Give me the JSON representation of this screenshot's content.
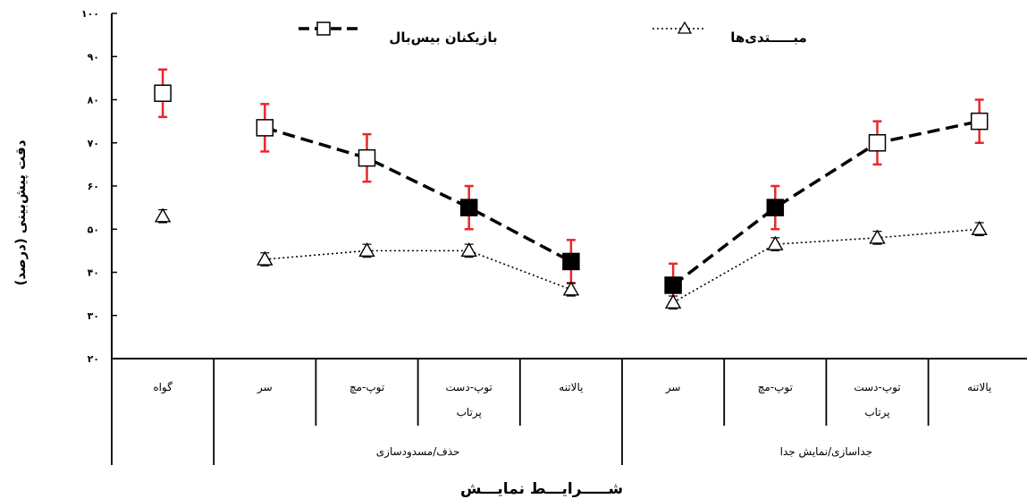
{
  "chart_data": {
    "type": "line",
    "ylabel": "دقت پیش‌بینی (درصد)",
    "xlabel": "شـــــرایـــط نمایـــش",
    "y_ticks": [
      "۲۰",
      "۳۰",
      "۴۰",
      "۵۰",
      "۶۰",
      "۷۰",
      "۸۰",
      "۹۰",
      "۱۰۰"
    ],
    "ylim": [
      20,
      100
    ],
    "categories": [
      "گواه",
      "سر",
      "توپ-مچ",
      "توپ-دست\nپرتاب",
      "یالاتنه",
      "سر",
      "توپ-مچ",
      "توپ-دست\nپرتاب",
      "یالاتنه"
    ],
    "groups": [
      {
        "label": "",
        "from": 0,
        "to": 0
      },
      {
        "label": "حذف/مسدودسازی",
        "from": 1,
        "to": 4
      },
      {
        "label": "جداسازی/نمایش  جدا",
        "from": 5,
        "to": 8
      }
    ],
    "legend_placement": "top",
    "series": [
      {
        "name": "بازیکنان بیس‌بال",
        "style": "dashed",
        "marker": "square",
        "color": "#000000",
        "error_color": "#e8282b",
        "values": [
          81.5,
          73.5,
          66.5,
          55,
          42.5,
          37,
          55,
          70,
          75
        ],
        "errors": [
          5.5,
          5.5,
          5.5,
          5,
          5,
          5,
          5,
          5,
          5
        ],
        "filled": [
          false,
          false,
          false,
          true,
          true,
          true,
          true,
          false,
          false
        ],
        "segments": [
          [
            1,
            4
          ],
          [
            5,
            8
          ]
        ]
      },
      {
        "name": "مبـــــتدی‌ها",
        "style": "dotted",
        "marker": "triangle",
        "color": "#000000",
        "error_color": "#000000",
        "values": [
          53,
          43,
          45,
          45,
          36,
          33,
          46.5,
          48,
          50
        ],
        "errors": [
          1.5,
          1.5,
          1.5,
          1.5,
          1.5,
          1.5,
          1.5,
          1.5,
          1.5
        ],
        "segments": [
          [
            1,
            4
          ],
          [
            5,
            8
          ]
        ]
      }
    ]
  }
}
